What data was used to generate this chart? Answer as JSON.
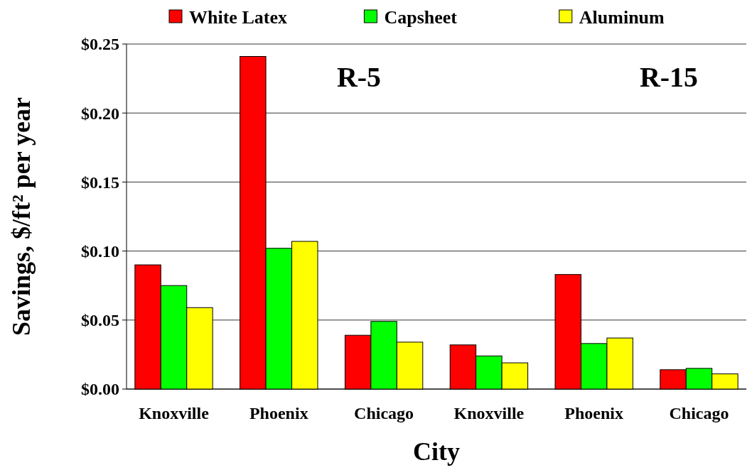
{
  "chart_data": {
    "type": "bar",
    "xlabel": "City",
    "ylabel": "Savings, $/ft² per year",
    "categories": [
      "Knoxville",
      "Phoenix",
      "Chicago",
      "Knoxville",
      "Phoenix",
      "Chicago"
    ],
    "series": [
      {
        "name": "White Latex",
        "color": "#ff0000",
        "values": [
          0.09,
          0.241,
          0.039,
          0.032,
          0.083,
          0.014
        ]
      },
      {
        "name": "Capsheet",
        "color": "#00ff00",
        "values": [
          0.075,
          0.102,
          0.049,
          0.024,
          0.033,
          0.015
        ]
      },
      {
        "name": "Aluminum",
        "color": "#ffff00",
        "values": [
          0.059,
          0.107,
          0.034,
          0.019,
          0.037,
          0.011
        ]
      }
    ],
    "ylim": [
      0,
      0.25
    ],
    "yticks": [
      {
        "value": 0,
        "label": "$0.00"
      },
      {
        "value": 0.05,
        "label": "$0.05"
      },
      {
        "value": 0.1,
        "label": "$0.10"
      },
      {
        "value": 0.15,
        "label": "$0.15"
      },
      {
        "value": 0.2,
        "label": "$0.20"
      },
      {
        "value": 0.25,
        "label": "$0.25"
      }
    ],
    "grid": "y",
    "legend": "top",
    "annotations": [
      "R-5",
      "R-15"
    ]
  }
}
